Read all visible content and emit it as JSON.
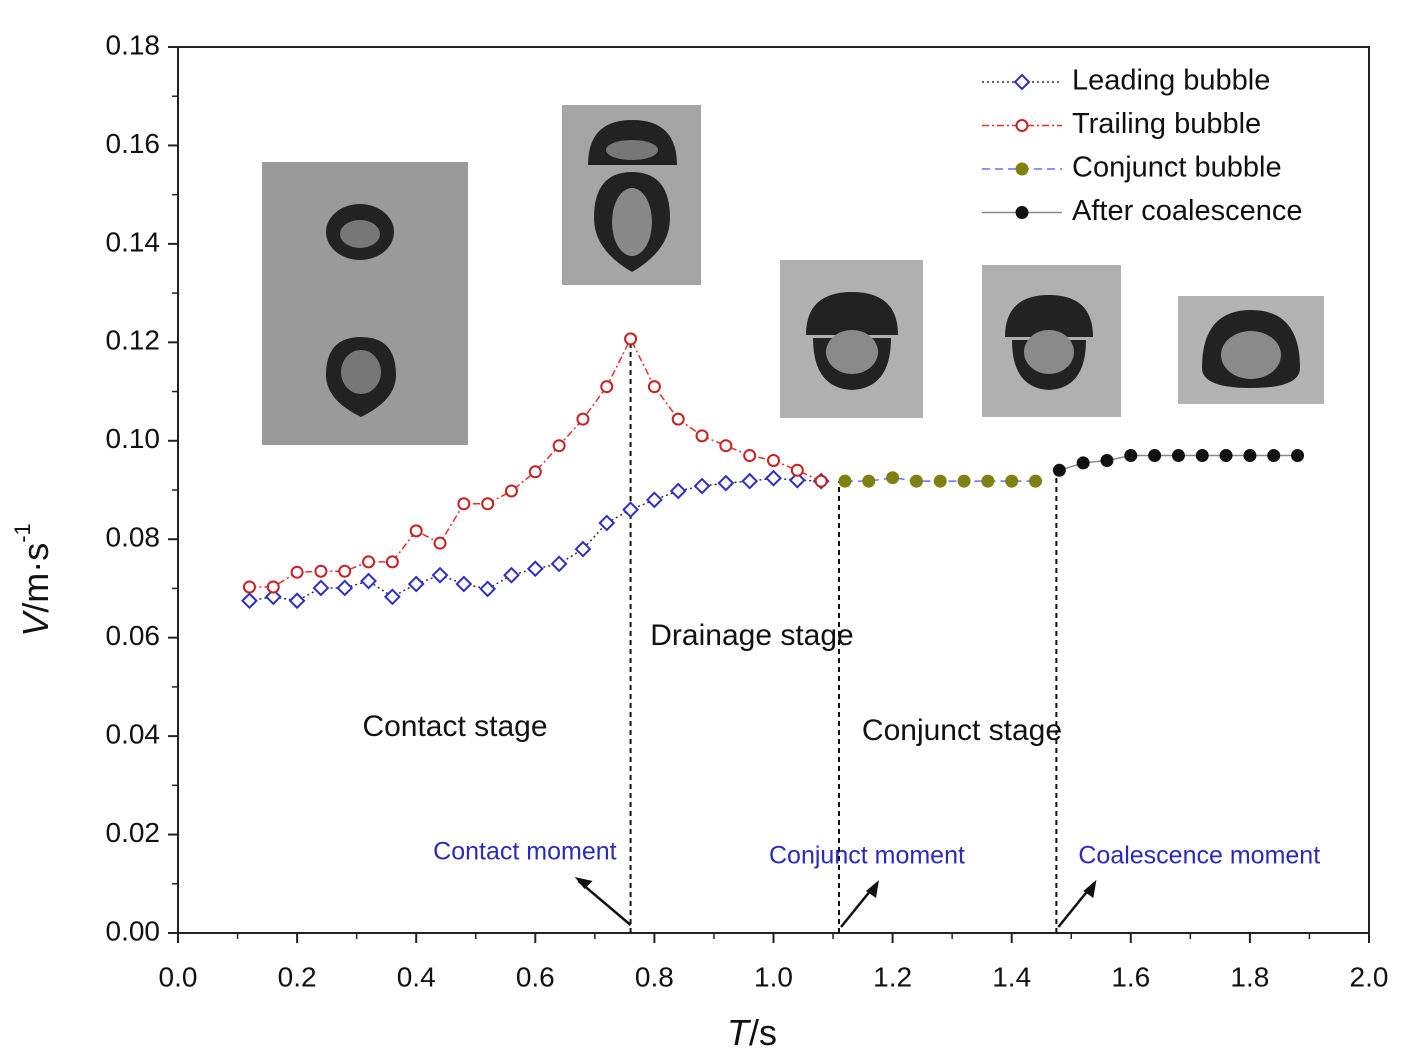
{
  "chart_data": {
    "type": "line",
    "xlabel": {
      "var": "T",
      "unit": "/s"
    },
    "ylabel": {
      "var": "V",
      "unit": "/m·s",
      "exp": "-1"
    },
    "xlim": [
      0,
      2.0
    ],
    "ylim": [
      0,
      0.18
    ],
    "xticks": [
      {
        "value": 0,
        "label": "0.0"
      },
      0.2,
      0.4,
      0.6,
      0.8,
      {
        "value": 1,
        "label": "1.0"
      },
      1.2,
      1.4,
      1.6,
      1.8,
      {
        "value": 2,
        "label": "2.0"
      }
    ],
    "yticks": [
      {
        "value": 0,
        "label": "0.00"
      },
      0.02,
      0.04,
      0.06,
      0.08,
      {
        "value": 0.1,
        "label": "0.10"
      },
      0.12,
      0.14,
      0.16,
      0.18
    ],
    "legend": "upper right",
    "series": [
      {
        "name": "Leading bubble",
        "color": "#2f2fbf",
        "line_color": "#333333",
        "line_style": "dotted",
        "marker": "diamond-open",
        "x": [
          0.12,
          0.16,
          0.2,
          0.24,
          0.28,
          0.32,
          0.36,
          0.4,
          0.44,
          0.48,
          0.52,
          0.56,
          0.6,
          0.64,
          0.68,
          0.72,
          0.76,
          0.8,
          0.84,
          0.88,
          0.92,
          0.96,
          1.0,
          1.04,
          1.08
        ],
        "values": [
          0.0675,
          0.0683,
          0.0675,
          0.0701,
          0.0701,
          0.0715,
          0.0683,
          0.0709,
          0.0727,
          0.0709,
          0.0699,
          0.0727,
          0.074,
          0.075,
          0.078,
          0.0833,
          0.086,
          0.088,
          0.0898,
          0.0908,
          0.0914,
          0.0918,
          0.0924,
          0.092,
          0.0918
        ]
      },
      {
        "name": "Trailing bubble",
        "color": "#c42222",
        "line_color": "#e03030",
        "line_style": "dashdot",
        "marker": "circle-open",
        "x": [
          0.12,
          0.16,
          0.2,
          0.24,
          0.28,
          0.32,
          0.36,
          0.4,
          0.44,
          0.48,
          0.52,
          0.56,
          0.6,
          0.64,
          0.68,
          0.72,
          0.76,
          0.8,
          0.84,
          0.88,
          0.92,
          0.96,
          1.0,
          1.04,
          1.08
        ],
        "values": [
          0.0703,
          0.0703,
          0.0733,
          0.0735,
          0.0735,
          0.0754,
          0.0754,
          0.0817,
          0.0792,
          0.0872,
          0.0872,
          0.0898,
          0.0937,
          0.099,
          0.1044,
          0.111,
          0.1207,
          0.111,
          0.1044,
          0.101,
          0.099,
          0.097,
          0.096,
          0.094,
          0.0918
        ]
      },
      {
        "name": "Conjunct bubble",
        "color": "#808010",
        "line_color": "#6a6aff",
        "line_style": "dashed",
        "marker": "circle-filled",
        "x": [
          1.12,
          1.16,
          1.2,
          1.24,
          1.28,
          1.32,
          1.36,
          1.4,
          1.44
        ],
        "values": [
          0.0918,
          0.0918,
          0.0925,
          0.0918,
          0.0918,
          0.0918,
          0.0918,
          0.0918,
          0.0918
        ]
      },
      {
        "name": "After coalescence",
        "color": "#111111",
        "line_color": "#888888",
        "line_style": "solid",
        "marker": "circle-filled",
        "x": [
          1.48,
          1.52,
          1.56,
          1.6,
          1.64,
          1.68,
          1.72,
          1.76,
          1.8,
          1.84,
          1.88
        ],
        "values": [
          0.094,
          0.0955,
          0.096,
          0.097,
          0.097,
          0.097,
          0.097,
          0.097,
          0.097,
          0.097,
          0.097
        ]
      }
    ],
    "moments": [
      {
        "label": "Contact moment",
        "x": 0.76,
        "y": 0.1207
      },
      {
        "label": "Conjunct moment",
        "x": 1.11,
        "y": 0.0918
      },
      {
        "label": "Coalescence moment",
        "x": 1.475,
        "y": 0.094
      }
    ],
    "stages": [
      "Contact stage",
      "Drainage stage",
      "Conjunct stage"
    ]
  }
}
